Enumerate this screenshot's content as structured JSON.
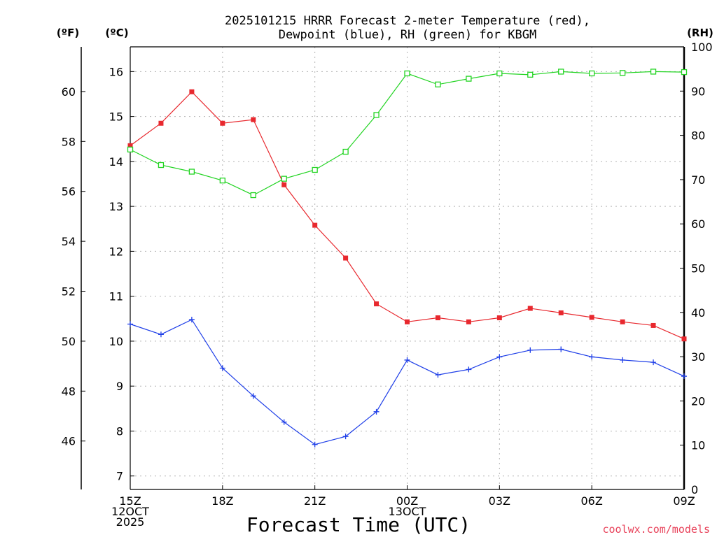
{
  "chart_data": {
    "type": "line",
    "title_lines": [
      "2025101215 HRRR Forecast 2-meter Temperature (red),",
      "Dewpoint (blue), RH (green) for KBGM"
    ],
    "axis_units": {
      "fahrenheit": "(ºF)",
      "celsius": "(ºC)",
      "rh": "(RH)"
    },
    "xlabel": "Forecast Time (UTC)",
    "credit": "coolwx.com/models",
    "x_ticks": [
      {
        "hour": 0,
        "lines": [
          "15Z",
          "12OCT",
          "2025"
        ]
      },
      {
        "hour": 3,
        "lines": [
          "18Z"
        ]
      },
      {
        "hour": 6,
        "lines": [
          "21Z"
        ]
      },
      {
        "hour": 9,
        "lines": [
          "00Z",
          "13OCT"
        ]
      },
      {
        "hour": 12,
        "lines": [
          "03Z"
        ]
      },
      {
        "hour": 15,
        "lines": [
          "06Z"
        ]
      },
      {
        "hour": 18,
        "lines": [
          "09Z"
        ]
      }
    ],
    "xlim": [
      0,
      18
    ],
    "celsius_ylim": [
      6.7,
      16.55
    ],
    "celsius_ticks": [
      7,
      8,
      9,
      10,
      11,
      12,
      13,
      14,
      15,
      16
    ],
    "fahrenheit_ticks": [
      46,
      48,
      50,
      52,
      54,
      56,
      58,
      60
    ],
    "rh_ylim": [
      0,
      100
    ],
    "rh_ticks": [
      0,
      10,
      20,
      30,
      40,
      50,
      60,
      70,
      80,
      90,
      100
    ],
    "series": [
      {
        "name": "Temperature",
        "color": "#e8282e",
        "marker": "square-filled",
        "axis": "celsius",
        "values": [
          14.35,
          14.85,
          15.55,
          14.85,
          14.93,
          13.48,
          12.58,
          11.85,
          10.83,
          10.43,
          10.52,
          10.43,
          10.52,
          10.73,
          10.63,
          10.53,
          10.43,
          10.35,
          10.05
        ]
      },
      {
        "name": "Dewpoint",
        "color": "#1f3fe8",
        "marker": "plus",
        "axis": "celsius",
        "values": [
          10.38,
          10.15,
          10.48,
          9.4,
          8.78,
          8.2,
          7.7,
          7.88,
          8.43,
          9.58,
          9.25,
          9.37,
          9.65,
          9.8,
          9.82,
          9.65,
          9.58,
          9.53,
          9.22
        ]
      },
      {
        "name": "RH",
        "color": "#22d422",
        "marker": "square-open",
        "axis": "rh",
        "values": [
          76.8,
          73.3,
          71.8,
          69.8,
          66.5,
          70.2,
          72.2,
          76.3,
          84.6,
          94.0,
          91.5,
          92.8,
          94.0,
          93.7,
          94.4,
          94.0,
          94.1,
          94.4,
          94.3
        ]
      }
    ]
  }
}
